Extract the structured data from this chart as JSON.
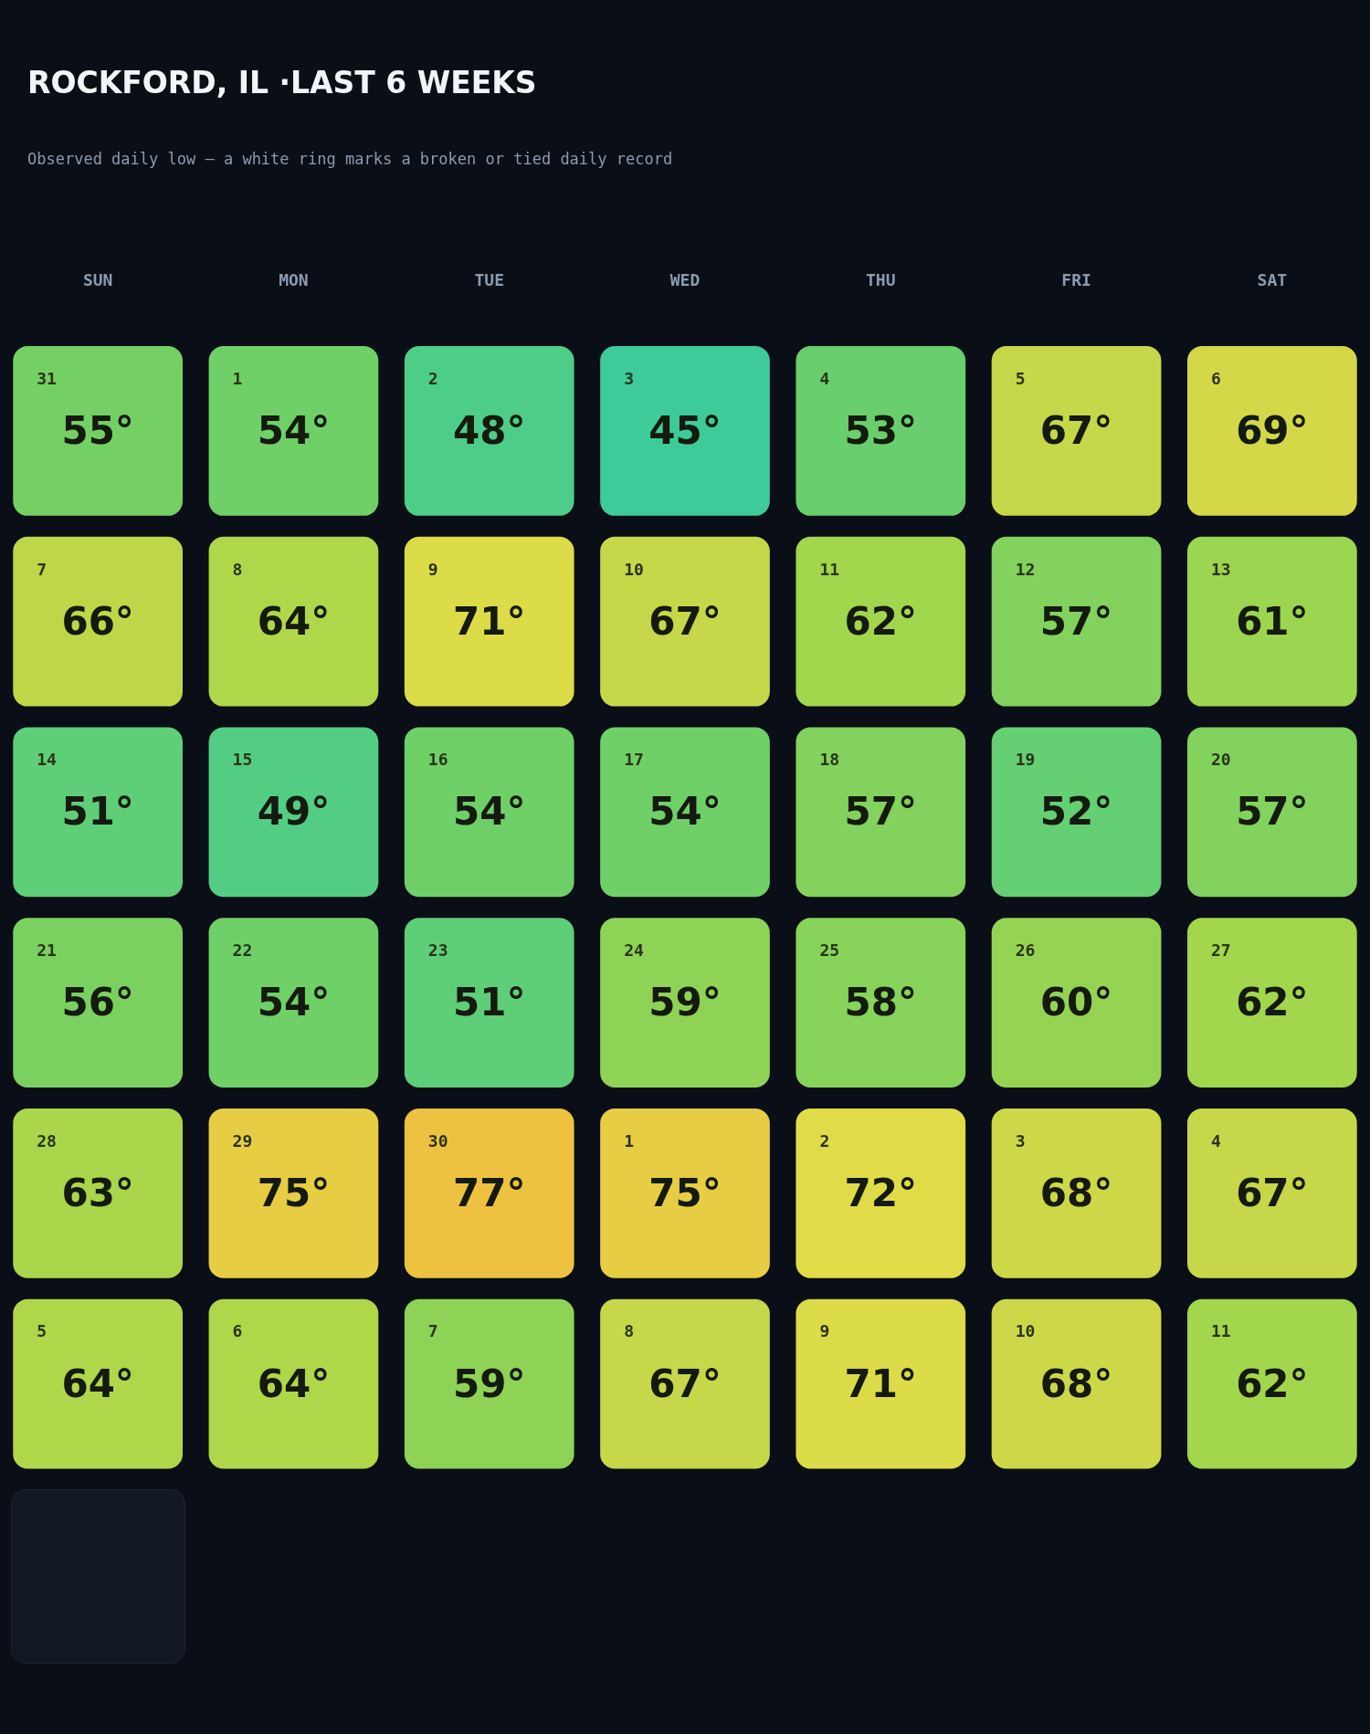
{
  "chart_data": {
    "type": "heatmap",
    "title": "ROCKFORD, IL ·LAST 6 WEEKS",
    "subtitle": "Observed daily low — a white ring marks a broken or tied daily record",
    "categories": [
      "SUN",
      "MON",
      "TUE",
      "WED",
      "THU",
      "FRI",
      "SAT"
    ],
    "y_categories": [
      null,
      null,
      null,
      null,
      null,
      null
    ],
    "cells": [
      [
        55,
        54,
        48,
        45,
        53,
        67,
        69
      ],
      [
        66,
        64,
        71,
        67,
        62,
        57,
        61
      ],
      [
        51,
        49,
        54,
        54,
        57,
        52,
        57
      ],
      [
        56,
        54,
        51,
        59,
        58,
        60,
        62
      ],
      [
        63,
        75,
        77,
        75,
        72,
        68,
        67
      ],
      [
        64,
        64,
        59,
        67,
        71,
        68,
        62
      ]
    ],
    "cell_labels": [
      [
        "55°",
        "54°",
        "48°",
        "45°",
        "53°",
        "67°",
        "69°"
      ],
      [
        "66°",
        "64°",
        "71°",
        "67°",
        "62°",
        "57°",
        "61°"
      ],
      [
        "51°",
        "49°",
        "54°",
        "54°",
        "57°",
        "52°",
        "57°"
      ],
      [
        "56°",
        "54°",
        "51°",
        "59°",
        "58°",
        "60°",
        "62°"
      ],
      [
        "63°",
        "75°",
        "77°",
        "75°",
        "72°",
        "68°",
        "67°"
      ],
      [
        "64°",
        "64°",
        "59°",
        "67°",
        "71°",
        "68°",
        "62°"
      ]
    ],
    "annotations": [
      "31",
      "1",
      "2",
      "3",
      "4",
      "5",
      "6",
      "7",
      "8",
      "9",
      "10",
      "11",
      "12",
      "13",
      "14",
      "15",
      "16",
      "17",
      "18",
      "19",
      "20",
      "21",
      "22",
      "23",
      "24",
      "25",
      "26",
      "27",
      "28",
      "29",
      "30",
      "1",
      "2",
      "3",
      "4",
      "5",
      "6",
      "7",
      "8",
      "9",
      "10",
      "11"
    ],
    "tick_labels": "x"
  }
}
